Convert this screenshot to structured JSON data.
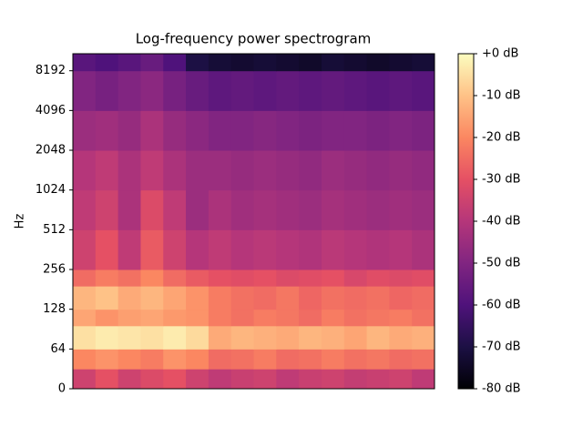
{
  "chart_data": {
    "type": "spectrogram",
    "title": "Log-frequency power spectrogram",
    "y_label": "Hz",
    "y_scale": "symlog",
    "linthresh": 64,
    "colormap": "magma",
    "ylim": [
      0,
      11025
    ],
    "yticks": [
      0,
      64,
      128,
      256,
      512,
      1024,
      2048,
      4096,
      8192
    ],
    "y_edges": [
      0,
      32,
      64,
      96,
      128,
      192,
      256,
      512,
      1024,
      2048,
      4096,
      8192,
      11025
    ],
    "zlim": [
      -80,
      0
    ],
    "zticks": [
      {
        "value": 0,
        "label": "+0 dB"
      },
      {
        "value": -10,
        "label": "-10 dB"
      },
      {
        "value": -20,
        "label": "-20 dB"
      },
      {
        "value": -30,
        "label": "-30 dB"
      },
      {
        "value": -40,
        "label": "-40 dB"
      },
      {
        "value": -50,
        "label": "-50 dB"
      },
      {
        "value": -60,
        "label": "-60 dB"
      },
      {
        "value": -70,
        "label": "-70 dB"
      },
      {
        "value": -80,
        "label": "-80 dB"
      }
    ],
    "z": [
      [
        -35,
        -30,
        -35,
        -32,
        -30,
        -35,
        -38,
        -36,
        -35,
        -38,
        -36,
        -35,
        -37,
        -36,
        -35,
        -38
      ],
      [
        -20,
        -18,
        -20,
        -22,
        -18,
        -20,
        -25,
        -24,
        -22,
        -25,
        -24,
        -22,
        -24,
        -23,
        -25,
        -24
      ],
      [
        -5,
        -3,
        -4,
        -5,
        -3,
        -6,
        -14,
        -12,
        -13,
        -14,
        -12,
        -13,
        -15,
        -12,
        -14,
        -13
      ],
      [
        -15,
        -18,
        -16,
        -15,
        -17,
        -18,
        -22,
        -24,
        -22,
        -23,
        -25,
        -22,
        -24,
        -23,
        -22,
        -24
      ],
      [
        -12,
        -10,
        -14,
        -12,
        -15,
        -18,
        -22,
        -24,
        -25,
        -23,
        -26,
        -24,
        -25,
        -24,
        -26,
        -25
      ],
      [
        -25,
        -22,
        -24,
        -20,
        -25,
        -28,
        -30,
        -31,
        -30,
        -32,
        -31,
        -30,
        -33,
        -31,
        -32,
        -31
      ],
      [
        -35,
        -30,
        -38,
        -28,
        -35,
        -40,
        -38,
        -40,
        -39,
        -40,
        -41,
        -39,
        -40,
        -41,
        -40,
        -42
      ],
      [
        -38,
        -35,
        -42,
        -32,
        -38,
        -45,
        -42,
        -44,
        -43,
        -44,
        -45,
        -43,
        -44,
        -45,
        -44,
        -45
      ],
      [
        -40,
        -38,
        -42,
        -38,
        -42,
        -45,
        -45,
        -46,
        -45,
        -46,
        -47,
        -45,
        -46,
        -47,
        -46,
        -47
      ],
      [
        -45,
        -44,
        -46,
        -42,
        -46,
        -48,
        -50,
        -50,
        -49,
        -50,
        -51,
        -50,
        -50,
        -51,
        -50,
        -51
      ],
      [
        -50,
        -52,
        -50,
        -48,
        -52,
        -55,
        -57,
        -56,
        -57,
        -56,
        -57,
        -56,
        -57,
        -58,
        -57,
        -58
      ],
      [
        -58,
        -60,
        -58,
        -55,
        -60,
        -70,
        -72,
        -73,
        -72,
        -73,
        -74,
        -72,
        -73,
        -74,
        -73,
        -72
      ]
    ]
  }
}
